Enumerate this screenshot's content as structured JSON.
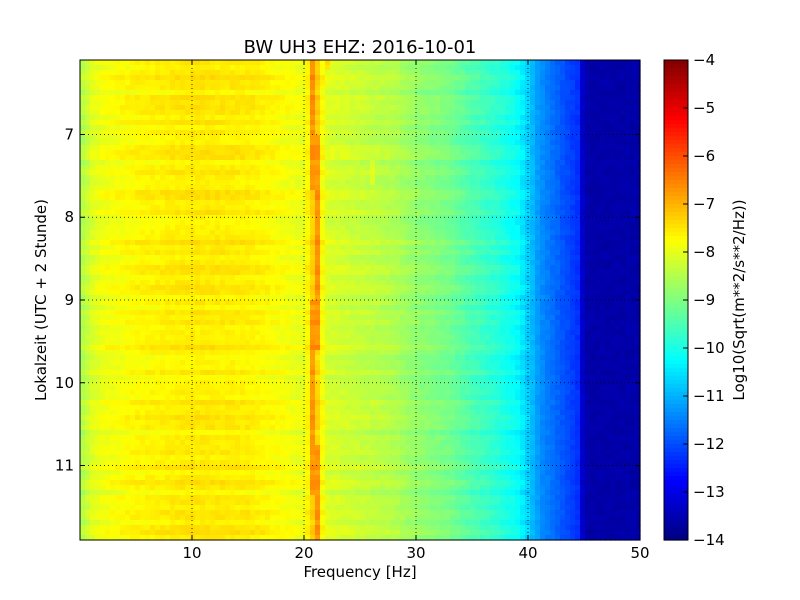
{
  "chart_data": {
    "type": "heatmap",
    "title": "BW UH3 EHZ: 2016-10-01",
    "xlabel": "Frequency [Hz]",
    "ylabel": "Lokalzeit (UTC + 2 Stunde)",
    "colorbar_label": "Log10(Sqrt(m**2/s**2/Hz))",
    "xlim": [
      0,
      50
    ],
    "ylim": [
      6.1,
      11.9
    ],
    "y_inverted": true,
    "x_ticks": [
      10,
      20,
      30,
      40,
      50
    ],
    "x_tick_labels": [
      "10",
      "20",
      "30",
      "40",
      "50"
    ],
    "y_ticks": [
      7,
      8,
      9,
      10,
      11
    ],
    "y_tick_labels": [
      "7",
      "8",
      "9",
      "10",
      "11"
    ],
    "colorbar_range": [
      -14,
      -4
    ],
    "colorbar_ticks": [
      -4,
      -5,
      -6,
      -7,
      -8,
      -9,
      -10,
      -11,
      -12,
      -13,
      -14
    ],
    "colorbar_tick_labels": [
      "−4",
      "−5",
      "−6",
      "−7",
      "−8",
      "−9",
      "−10",
      "−11",
      "−12",
      "−13",
      "−14"
    ],
    "colormap": "jet",
    "grid": true,
    "spectral_profile": {
      "frequency_hz": [
        0,
        1,
        2,
        5,
        10,
        15,
        18,
        20,
        21,
        22,
        25,
        28,
        30,
        33,
        35,
        37,
        39,
        40,
        41,
        43,
        44.5,
        45,
        50
      ],
      "log10_psd": [
        -8.6,
        -8.1,
        -7.9,
        -7.7,
        -7.55,
        -7.6,
        -7.8,
        -7.95,
        -7.1,
        -8.1,
        -8.3,
        -8.5,
        -8.8,
        -9.1,
        -9.5,
        -9.8,
        -10.2,
        -10.7,
        -11.3,
        -11.9,
        -12.3,
        -13.6,
        -13.6
      ]
    },
    "spectral_line_hz": [
      21.0,
      22.2,
      26.0
    ]
  }
}
